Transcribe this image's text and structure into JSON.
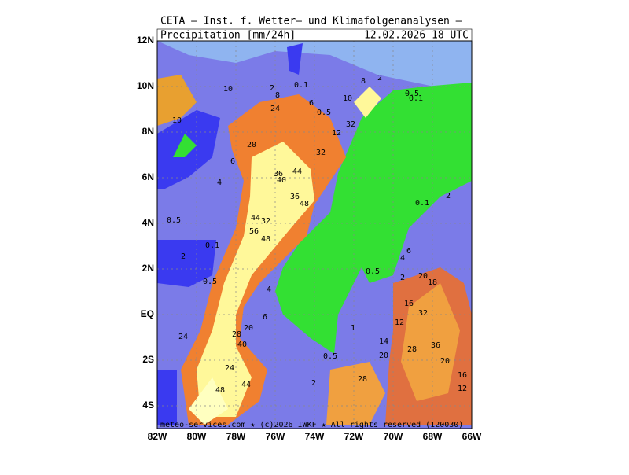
{
  "header": {
    "title": "CETA — Inst. f. Wetter— und Klimafolgenanalysen —",
    "variable": "Precipitation [mm/24h]",
    "valid_time": "12.02.2026 18 UTC"
  },
  "axes": {
    "latitude": [
      "12N",
      "10N",
      "8N",
      "6N",
      "4N",
      "2N",
      "EQ",
      "2S",
      "4S"
    ],
    "longitude": [
      "82W",
      "80W",
      "78W",
      "76W",
      "74W",
      "72W",
      "70W",
      "68W",
      "66W"
    ]
  },
  "contour_labels": [
    "10",
    "10",
    "2",
    "0.1",
    "8",
    "24",
    "6",
    "0.5",
    "10",
    "8",
    "2",
    "0.5",
    "0.1",
    "12",
    "32",
    "20",
    "32",
    "6",
    "4",
    "36",
    "44",
    "40",
    "36",
    "48",
    "0.1",
    "2",
    "0.5",
    "44",
    "32",
    "56",
    "48",
    "0.1",
    "2",
    "0.5",
    "4",
    "6",
    "0.5",
    "4",
    "2",
    "20",
    "18",
    "16",
    "32",
    "6",
    "12",
    "1",
    "20",
    "24",
    "28",
    "40",
    "14",
    "28",
    "36",
    "20",
    "0.5",
    "20",
    "24",
    "16",
    "44",
    "48",
    "2",
    "28",
    "12"
  ],
  "footer": "meteo-services.com ★ (c)2026 IWKF ★ All rights reserved (120030)"
}
